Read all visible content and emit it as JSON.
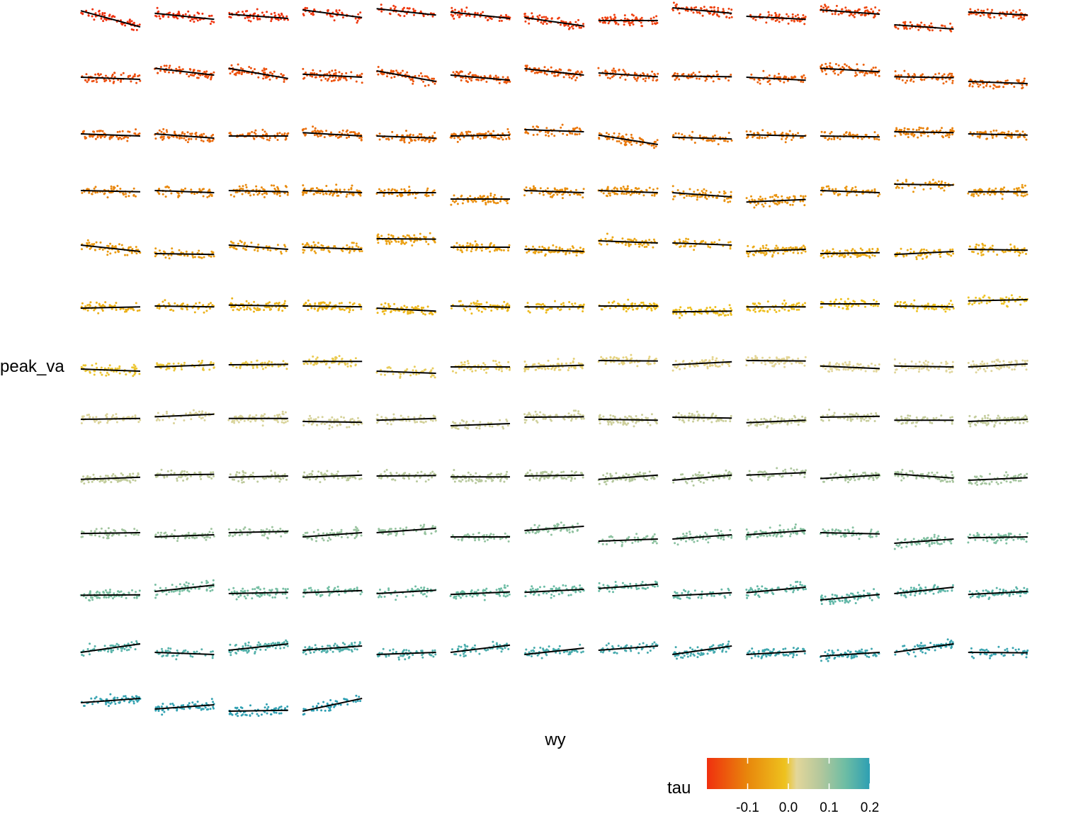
{
  "chart_data": {
    "type": "scatter",
    "facet_layout": {
      "ncol": 13,
      "nrow": 13,
      "n_panels": 160
    },
    "xlabel": "wy",
    "ylabel": "peak_va",
    "legend": {
      "title": "tau",
      "position": "bottom-right",
      "type": "colorbar",
      "range": [
        -0.2,
        0.2
      ],
      "ticks": [
        -0.1,
        0.0,
        0.1,
        0.2
      ],
      "tick_labels": [
        "-0.1",
        "0.0",
        "0.1",
        "0.2"
      ],
      "colors": [
        "#f0300e",
        "#e8870c",
        "#eec21e",
        "#e3d69a",
        "#b2c79c",
        "#6dbda4",
        "#2e9fb3"
      ]
    },
    "trend_line_color": "#000000",
    "panels_trend_lines": [
      [
        0.78,
        0.4
      ],
      [
        0.72,
        0.58
      ],
      [
        0.7,
        0.6
      ],
      [
        0.8,
        0.62
      ],
      [
        0.83,
        0.68
      ],
      [
        0.75,
        0.6
      ],
      [
        0.62,
        0.42
      ],
      [
        0.55,
        0.55
      ],
      [
        0.85,
        0.72
      ],
      [
        0.65,
        0.58
      ],
      [
        0.8,
        0.7
      ],
      [
        0.45,
        0.35
      ],
      [
        0.75,
        0.68
      ],
      [
        0.55,
        0.5
      ],
      [
        0.76,
        0.6
      ],
      [
        0.76,
        0.52
      ],
      [
        0.62,
        0.55
      ],
      [
        0.7,
        0.45
      ],
      [
        0.6,
        0.48
      ],
      [
        0.75,
        0.6
      ],
      [
        0.65,
        0.56
      ],
      [
        0.58,
        0.56
      ],
      [
        0.55,
        0.48
      ],
      [
        0.76,
        0.68
      ],
      [
        0.56,
        0.54
      ],
      [
        0.45,
        0.4
      ],
      [
        0.55,
        0.5
      ],
      [
        0.55,
        0.45
      ],
      [
        0.5,
        0.5
      ],
      [
        0.58,
        0.5
      ],
      [
        0.5,
        0.45
      ],
      [
        0.5,
        0.52
      ],
      [
        0.65,
        0.6
      ],
      [
        0.52,
        0.3
      ],
      [
        0.47,
        0.43
      ],
      [
        0.53,
        0.5
      ],
      [
        0.5,
        0.48
      ],
      [
        0.6,
        0.58
      ],
      [
        0.55,
        0.52
      ],
      [
        0.55,
        0.52
      ],
      [
        0.55,
        0.5
      ],
      [
        0.55,
        0.52
      ],
      [
        0.55,
        0.5
      ],
      [
        0.5,
        0.5
      ],
      [
        0.35,
        0.35
      ],
      [
        0.55,
        0.5
      ],
      [
        0.55,
        0.5
      ],
      [
        0.5,
        0.4
      ],
      [
        0.28,
        0.34
      ],
      [
        0.55,
        0.5
      ],
      [
        0.7,
        0.68
      ],
      [
        0.52,
        0.52
      ],
      [
        0.6,
        0.45
      ],
      [
        0.4,
        0.38
      ],
      [
        0.6,
        0.5
      ],
      [
        0.55,
        0.5
      ],
      [
        0.75,
        0.74
      ],
      [
        0.55,
        0.55
      ],
      [
        0.5,
        0.45
      ],
      [
        0.7,
        0.65
      ],
      [
        0.65,
        0.6
      ],
      [
        0.45,
        0.5
      ],
      [
        0.4,
        0.42
      ],
      [
        0.38,
        0.45
      ],
      [
        0.5,
        0.48
      ],
      [
        0.45,
        0.48
      ],
      [
        0.5,
        0.48
      ],
      [
        0.52,
        0.5
      ],
      [
        0.5,
        0.48
      ],
      [
        0.45,
        0.38
      ],
      [
        0.5,
        0.47
      ],
      [
        0.48,
        0.48
      ],
      [
        0.5,
        0.5
      ],
      [
        0.36,
        0.38
      ],
      [
        0.48,
        0.48
      ],
      [
        0.55,
        0.55
      ],
      [
        0.5,
        0.48
      ],
      [
        0.62,
        0.65
      ],
      [
        0.35,
        0.3
      ],
      [
        0.4,
        0.45
      ],
      [
        0.45,
        0.46
      ],
      [
        0.53,
        0.53
      ],
      [
        0.3,
        0.25
      ],
      [
        0.4,
        0.4
      ],
      [
        0.4,
        0.44
      ],
      [
        0.55,
        0.54
      ],
      [
        0.45,
        0.52
      ],
      [
        0.55,
        0.54
      ],
      [
        0.42,
        0.36
      ],
      [
        0.42,
        0.4
      ],
      [
        0.4,
        0.47
      ],
      [
        0.5,
        0.52
      ],
      [
        0.56,
        0.62
      ],
      [
        0.52,
        0.52
      ],
      [
        0.45,
        0.43
      ],
      [
        0.48,
        0.52
      ],
      [
        0.35,
        0.4
      ],
      [
        0.55,
        0.56
      ],
      [
        0.5,
        0.48
      ],
      [
        0.55,
        0.53
      ],
      [
        0.42,
        0.48
      ],
      [
        0.55,
        0.57
      ],
      [
        0.48,
        0.48
      ],
      [
        0.45,
        0.5
      ],
      [
        0.42,
        0.47
      ],
      [
        0.52,
        0.54
      ],
      [
        0.47,
        0.5
      ],
      [
        0.47,
        0.52
      ],
      [
        0.5,
        0.51
      ],
      [
        0.48,
        0.48
      ],
      [
        0.5,
        0.52
      ],
      [
        0.42,
        0.52
      ],
      [
        0.4,
        0.52
      ],
      [
        0.52,
        0.58
      ],
      [
        0.44,
        0.52
      ],
      [
        0.55,
        0.45
      ],
      [
        0.4,
        0.46
      ],
      [
        0.48,
        0.5
      ],
      [
        0.4,
        0.45
      ],
      [
        0.5,
        0.53
      ],
      [
        0.4,
        0.5
      ],
      [
        0.5,
        0.6
      ],
      [
        0.4,
        0.4
      ],
      [
        0.55,
        0.65
      ],
      [
        0.3,
        0.35
      ],
      [
        0.35,
        0.45
      ],
      [
        0.45,
        0.55
      ],
      [
        0.5,
        0.47
      ],
      [
        0.25,
        0.35
      ],
      [
        0.38,
        0.4
      ],
      [
        0.36,
        0.37
      ],
      [
        0.45,
        0.6
      ],
      [
        0.4,
        0.43
      ],
      [
        0.42,
        0.47
      ],
      [
        0.4,
        0.48
      ],
      [
        0.38,
        0.44
      ],
      [
        0.43,
        0.5
      ],
      [
        0.52,
        0.62
      ],
      [
        0.35,
        0.42
      ],
      [
        0.42,
        0.55
      ],
      [
        0.25,
        0.38
      ],
      [
        0.4,
        0.55
      ],
      [
        0.38,
        0.45
      ],
      [
        0.35,
        0.55
      ],
      [
        0.35,
        0.3
      ],
      [
        0.4,
        0.55
      ],
      [
        0.4,
        0.5
      ],
      [
        0.3,
        0.35
      ],
      [
        0.35,
        0.52
      ],
      [
        0.3,
        0.45
      ],
      [
        0.4,
        0.5
      ],
      [
        0.3,
        0.5
      ],
      [
        0.3,
        0.38
      ],
      [
        0.26,
        0.35
      ],
      [
        0.35,
        0.55
      ],
      [
        0.35,
        0.34
      ],
      [
        0.5,
        0.6
      ],
      [
        0.35,
        0.45
      ],
      [
        0.3,
        0.32
      ],
      [
        0.3,
        0.6
      ]
    ]
  }
}
